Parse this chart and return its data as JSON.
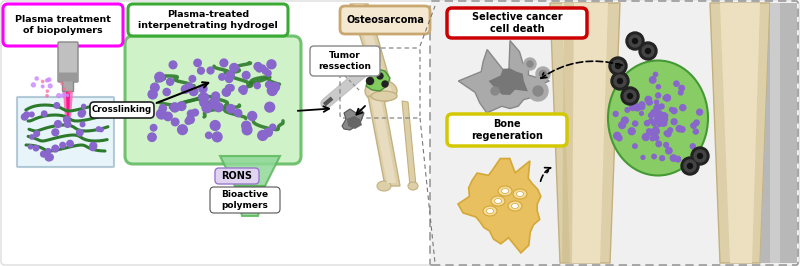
{
  "bg_color": "#ffffff",
  "label_plasma_treatment": "Plasma treatment\nof biopolymers",
  "label_plasma_hydrogel": "Plasma-treated\ninterpenetrating hydrogel",
  "label_osteosarcoma": "Osteosarcoma",
  "label_crosslinking": "Crosslinking",
  "label_rons": "RONS",
  "label_bioactive": "Bioactive\npolymers",
  "label_tumor": "Tumor\nressection",
  "label_selective": "Selective cancer\ncell death",
  "label_bone_regen": "Bone\nregeneration",
  "pink_color": "#ff1493",
  "green_hydrogel": "#5cb85c",
  "green_light": "#c8f0c0",
  "green_strand": "#2d7a2d",
  "purple_dot": "#8866cc",
  "bone_color": "#ddd0a8",
  "bone_inner": "#e8dcc0",
  "bone_dark": "#c4b080",
  "gray_bone": "#aaaaaa",
  "red_border": "#cc0000",
  "green_border": "#3aaa35",
  "magenta_border": "#ff00ff",
  "yellow_border": "#d4c800",
  "tan_border": "#c8a870",
  "tan_fill": "#f5e8d0",
  "gray_bg": "#f0f0f0",
  "gray_cell": "#999999",
  "gray_cell_dark": "#666666",
  "yellow_cell": "#d4a835",
  "yellow_cell_light": "#e8c060"
}
